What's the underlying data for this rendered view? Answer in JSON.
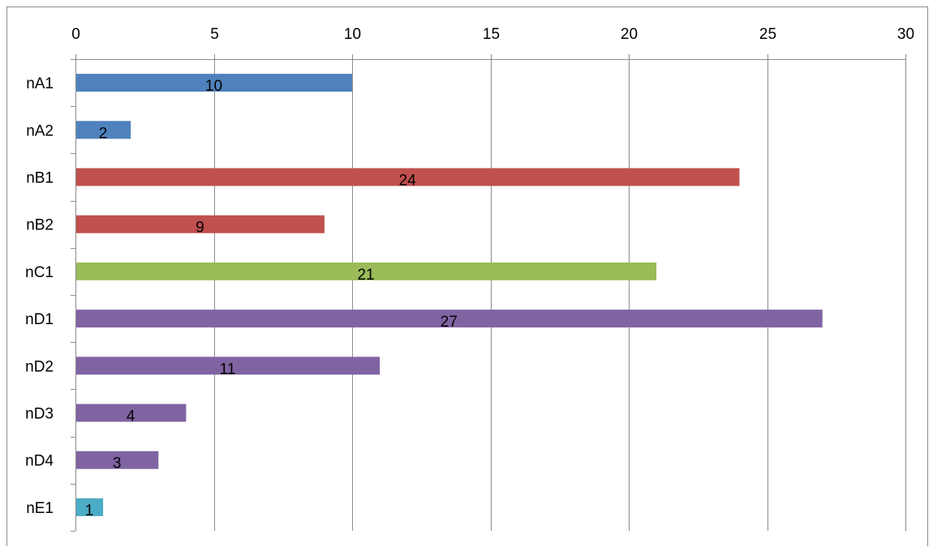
{
  "chart_data": {
    "type": "bar",
    "orientation": "horizontal",
    "categories": [
      "nA1",
      "nA2",
      "nB1",
      "nB2",
      "nC1",
      "nD1",
      "nD2",
      "nD3",
      "nD4",
      "nE1"
    ],
    "values": [
      10,
      2,
      24,
      9,
      21,
      27,
      11,
      4,
      3,
      1
    ],
    "bar_colors": [
      "#4f81bd",
      "#4f81bd",
      "#c0504d",
      "#c0504d",
      "#9bbb59",
      "#8064a2",
      "#8064a2",
      "#8064a2",
      "#8064a2",
      "#4bacc6"
    ],
    "x_ticks": [
      0,
      5,
      10,
      15,
      20,
      25,
      30
    ],
    "xlim": [
      0,
      30
    ],
    "x_axis_position": "top",
    "data_labels": true,
    "grid": "vertical major gridlines",
    "gridline_color": "#8c8c8c",
    "title": "",
    "xlabel": "",
    "ylabel": ""
  }
}
